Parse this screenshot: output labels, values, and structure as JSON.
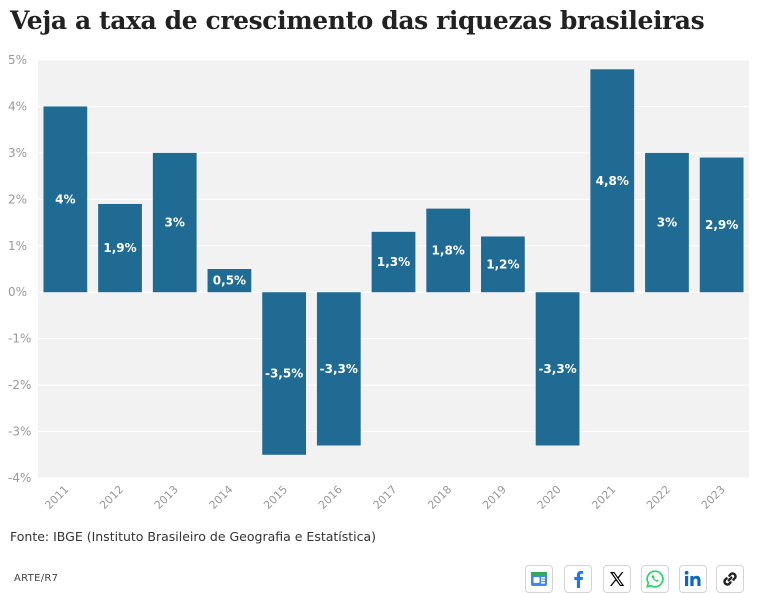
{
  "title": "Veja a taxa de crescimento das riquezas brasileiras",
  "source": "Fonte: IBGE (Instituto Brasileiro de Geografia e Estatística)",
  "credit": "ARTE/R7",
  "share_icons": [
    "google-news-icon",
    "facebook-icon",
    "x-icon",
    "whatsapp-icon",
    "linkedin-icon",
    "link-icon"
  ],
  "colors": {
    "bar": "#206b94",
    "plot_bg": "#f2f2f2",
    "grid": "#ffffff",
    "bar_label": "#ffffff",
    "tick": "#999999"
  },
  "chart_data": {
    "type": "bar",
    "categories": [
      "2011",
      "2012",
      "2013",
      "2014",
      "2015",
      "2016",
      "2017",
      "2018",
      "2019",
      "2020",
      "2021",
      "2022",
      "2023"
    ],
    "values": [
      4,
      1.9,
      3,
      0.5,
      -3.5,
      -3.3,
      1.3,
      1.8,
      1.2,
      -3.3,
      4.8,
      3,
      2.9
    ],
    "data_labels": [
      "4%",
      "1,9%",
      "3%",
      "0,5%",
      "-3,5%",
      "-3,3%",
      "1,3%",
      "1,8%",
      "1,2%",
      "-3,3%",
      "4,8%",
      "3%",
      "2,9%"
    ],
    "yticks": [
      5,
      4,
      3,
      2,
      1,
      0,
      -1,
      -2,
      -3,
      -4
    ],
    "ytick_labels": [
      "5%",
      "4%",
      "3%",
      "2%",
      "1%",
      "0%",
      "-1%",
      "-2%",
      "-3%",
      "-4%"
    ],
    "ylim": [
      -4,
      5
    ],
    "grid": true,
    "xlabel": "",
    "ylabel": ""
  }
}
